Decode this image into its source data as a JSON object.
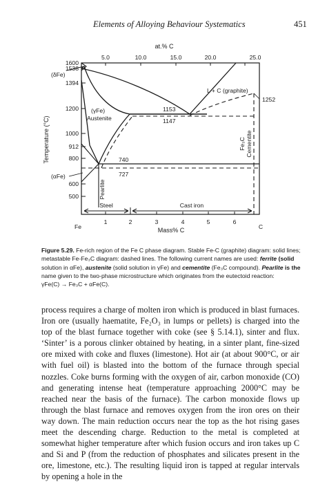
{
  "header": {
    "title": "Elements of Alloying Behaviour Systematics",
    "page_number": "451"
  },
  "figure": {
    "top_axis_title": "at.% C",
    "top_ticks": [
      "5.0",
      "10.0",
      "15.0",
      "20.0",
      "25.0"
    ],
    "bottom_axis_title": "Mass% C",
    "bottom_ticks": [
      "1",
      "2",
      "3",
      "4",
      "5",
      "6"
    ],
    "bottom_left_label": "Fe",
    "bottom_right_label": "C",
    "y_axis_title": "Temperature (°C)",
    "y_ticks": [
      "1600",
      "1538",
      "1394",
      "1200",
      "1000",
      "912",
      "800",
      "600",
      "500"
    ],
    "y_tick_values": [
      1600,
      1538,
      1394,
      1200,
      1000,
      912,
      800,
      600,
      500
    ],
    "phase_labels": {
      "delta_fe": "(δFe)",
      "alpha_fe": "(αFe)",
      "gamma_fe": "(γFe)",
      "austenite": "Austenite",
      "liquid_graphite": "L + C (graphite)",
      "fe3c": "Fe₃C",
      "cementite": "Cementite",
      "pearlite": "Pearlite",
      "steel": "Steel",
      "cast_iron": "Cast iron"
    },
    "point_labels": {
      "t1153": "1153",
      "t1147": "1147",
      "t740": "740",
      "t727": "727",
      "t1252": "1252"
    }
  },
  "caption": {
    "lines": [
      "Fe-rich region of the Fe C phase diagram. Stable Fe-C (graphite) diagram: solid lines;",
      "metastable Fe-Fe₃C diagram: dashed lines. The following current names are used:",
      "solution in αFe),",
      "(solid solution in γFe) and",
      "(Fe₃C compound).",
      "is the",
      "name given to the two-phase microstructure which originates from the eutectoid reaction:",
      "γFe(C) → Fe₃C + αFe(C)."
    ],
    "label": "Figure 5.29.",
    "term_ferrite": "ferrite",
    "term_ferrite_rest": "(solid",
    "term_austenite": "austenite",
    "term_cementite": "cementite",
    "term_pearlite": "Pearlite"
  },
  "body": {
    "paragraph": "process requires a charge of molten iron which is produced in blast furnaces. Iron ore (usually haematite, Fe₂O₃ in lumps or pellets) is charged into the top of the blast furnace together with coke (see § 5.14.1), sinter and flux. ‘Sinter’ is a porous clinker obtained by heating, in a sinter plant, fine-sized ore mixed with coke and fluxes (limestone). Hot air (at about 900°C, or air with fuel oil) is blasted into the bottom of the furnace through special nozzles. Coke burns forming with the oxygen of air, carbon monoxide (CO) and generating intense heat (temperature approaching 2000°C may be reached near the basis of the furnace). The carbon monoxide flows up through the blast furnace and removes oxygen from the iron ores on their way down. The main reduction occurs near the top as the hot rising gases meet the descending charge. Reduction to the metal is completed at somewhat higher temperature after which fusion occurs and iron takes up C and Si and P (from the reduction of phosphates and silicates present in the ore, limestone, etc.). The resulting liquid iron is tapped at regular intervals by opening a hole in the"
  }
}
